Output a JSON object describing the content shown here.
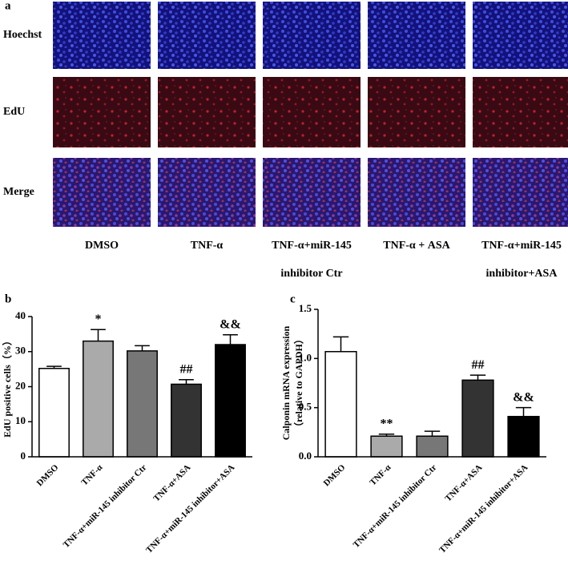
{
  "figure": {
    "panel_labels": [
      "a",
      "b",
      "c"
    ],
    "row_labels": [
      "Hoechst",
      "EdU",
      "Merge"
    ],
    "column_labels": [
      [
        "DMSO"
      ],
      [
        "TNF-α"
      ],
      [
        "TNF-α+miR-145",
        "inhibitor Ctr"
      ],
      [
        "TNF-α + ASA"
      ],
      [
        "TNF-α+miR-145",
        "inhibitor+ASA"
      ]
    ]
  },
  "chart_data": [
    {
      "type": "bar",
      "ylabel": [
        "EdU positive cells（%）"
      ],
      "categories": [
        "DMSO",
        "TNF-α",
        "TNF-α+miR-145 inhibitor Ctr",
        "TNF-α+ASA",
        "TNF-α+miR-145 inhibitor+ASA"
      ],
      "values": [
        25.2,
        33,
        30.2,
        20.7,
        32
      ],
      "errors": [
        0.6,
        3.3,
        1.5,
        1.3,
        2.8
      ],
      "annotations": [
        null,
        "*",
        null,
        "##",
        "&&"
      ],
      "colors": [
        "#ffffff",
        "#aaaaaa",
        "#777777",
        "#333333",
        "#000000"
      ],
      "ylim": [
        0,
        40
      ],
      "yticks": [
        0,
        10,
        20,
        30,
        40
      ],
      "grid": false
    },
    {
      "type": "bar",
      "ylabel": [
        "Calponin mRNA expression",
        "（relative to GAPDH）"
      ],
      "categories": [
        "DMSO",
        "TNF-α",
        "TNF-α+miR-145 inhibitor Ctr",
        "TNF-α+ASA",
        "TNF-α+miR-145 inhibitor+ASA"
      ],
      "values": [
        1.07,
        0.21,
        0.21,
        0.78,
        0.41
      ],
      "errors": [
        0.15,
        0.02,
        0.05,
        0.05,
        0.09
      ],
      "annotations": [
        null,
        "**",
        null,
        "##",
        "&&"
      ],
      "colors": [
        "#ffffff",
        "#aaaaaa",
        "#777777",
        "#333333",
        "#000000"
      ],
      "ylim": [
        0,
        1.5
      ],
      "yticks": [
        {
          "value": 0,
          "label": "0.0"
        },
        {
          "value": 0.5,
          "label": "0.5"
        },
        {
          "value": 1,
          "label": "1.0"
        },
        {
          "value": 1.5,
          "label": "1.5"
        }
      ],
      "grid": false
    }
  ]
}
